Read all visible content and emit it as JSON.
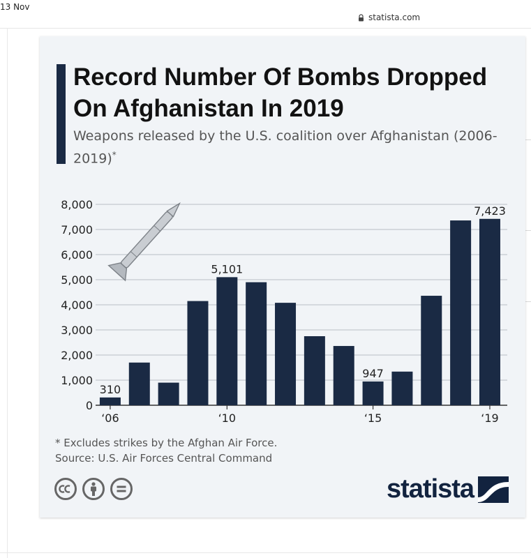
{
  "browser": {
    "date": "13 Nov",
    "url": "statista.com"
  },
  "infographic": {
    "title": "Record Number Of Bombs Dropped On Afghanistan In 2019",
    "subtitle": "Weapons released by the U.S. coalition over Afghanistan (2006-2019)",
    "subtitle_mark": "*",
    "footnote": "* Excludes strikes by the Afghan Air Force.",
    "source": "Source: U.S. Air Forces Central Command",
    "brand": "statista",
    "accent_color": "#1a2a44"
  },
  "chart_data": {
    "type": "bar",
    "categories": [
      "2006",
      "2007",
      "2008",
      "2009",
      "2010",
      "2011",
      "2012",
      "2013",
      "2014",
      "2015",
      "2016",
      "2017",
      "2018",
      "2019"
    ],
    "values": [
      310,
      1700,
      900,
      4150,
      5101,
      4900,
      4080,
      2750,
      2360,
      947,
      1340,
      4360,
      7360,
      7423
    ],
    "data_labels": {
      "0": "310",
      "4": "5,101",
      "9": "947",
      "13": "7,423"
    },
    "x_tick_labels": {
      "0": "‘06",
      "4": "‘10",
      "9": "‘15",
      "13": "‘19"
    },
    "y_ticks": [
      0,
      1000,
      2000,
      3000,
      4000,
      5000,
      6000,
      7000,
      8000
    ],
    "y_tick_labels": [
      "0",
      "1,000",
      "2,000",
      "3,000",
      "4,000",
      "5,000",
      "6,000",
      "7,000",
      "8,000"
    ],
    "ylim": [
      0,
      8000
    ],
    "grid": true,
    "bar_color": "#1a2a44",
    "title": "Record Number Of Bombs Dropped On Afghanistan In 2019",
    "xlabel": "",
    "ylabel": ""
  }
}
